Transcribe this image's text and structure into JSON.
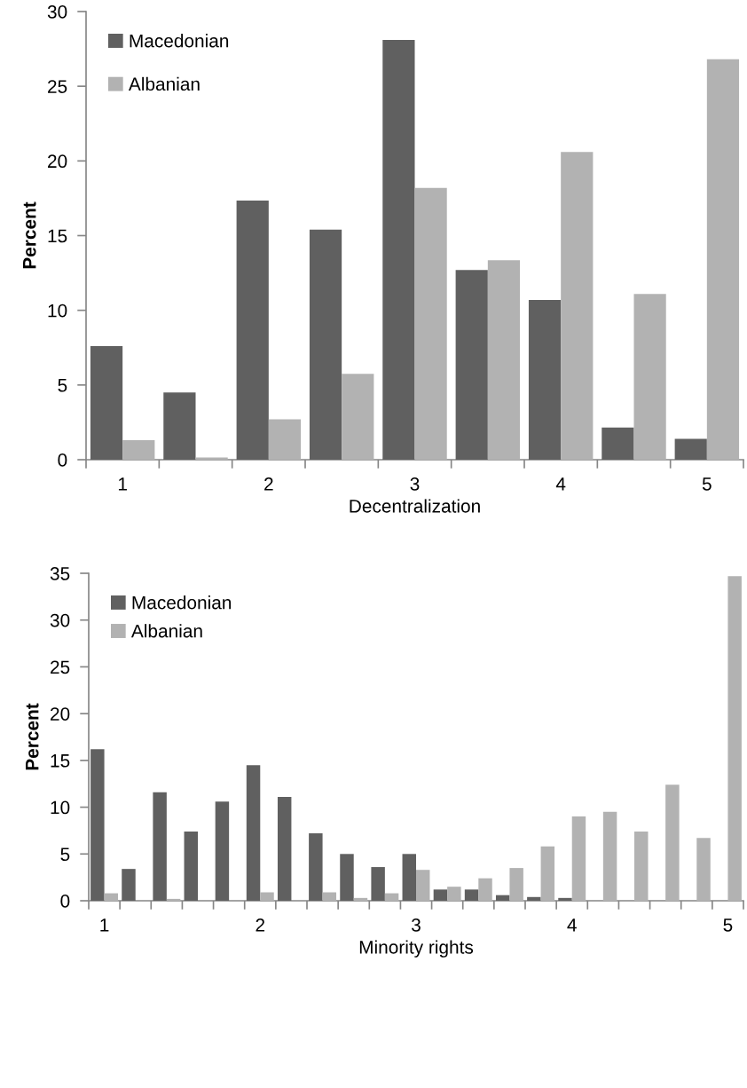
{
  "chart_data": [
    {
      "type": "bar",
      "xlabel": "Decentralization",
      "ylabel": "Percent",
      "categories": [
        "1",
        null,
        "2",
        null,
        "3",
        null,
        "4",
        null,
        "5"
      ],
      "series": [
        {
          "name": "Macedonian",
          "color": "#606060",
          "values": [
            7.6,
            4.5,
            17.35,
            15.4,
            28.1,
            12.7,
            10.7,
            2.15,
            1.4
          ]
        },
        {
          "name": "Albanian",
          "color": "#b2b2b2",
          "values": [
            1.3,
            0.15,
            2.7,
            5.75,
            18.2,
            13.35,
            20.6,
            11.1,
            26.8
          ]
        }
      ],
      "ylim": [
        0,
        30
      ],
      "yticks": [
        0,
        5,
        10,
        15,
        20,
        25,
        30
      ],
      "legend": "top left",
      "grid": false
    },
    {
      "type": "bar",
      "xlabel": "Minority rights",
      "ylabel": "Percent",
      "categories": [
        "1",
        null,
        null,
        null,
        null,
        "2",
        null,
        null,
        null,
        null,
        "3",
        null,
        null,
        null,
        null,
        "4",
        null,
        null,
        null,
        null,
        "5"
      ],
      "series": [
        {
          "name": "Macedonian",
          "color": "#606060",
          "values": [
            16.2,
            3.4,
            11.6,
            7.4,
            10.6,
            14.5,
            11.1,
            7.2,
            5.0,
            3.6,
            5.0,
            1.2,
            1.2,
            0.6,
            0.4,
            0.3,
            0,
            0,
            0,
            0,
            0
          ]
        },
        {
          "name": "Albanian",
          "color": "#b2b2b2",
          "values": [
            0.8,
            0,
            0.2,
            0,
            0,
            0.9,
            0,
            0.9,
            0.3,
            0.8,
            3.3,
            1.5,
            2.4,
            3.5,
            5.8,
            9.0,
            9.5,
            7.4,
            12.4,
            6.7,
            34.7
          ]
        }
      ],
      "ylim": [
        0,
        35
      ],
      "yticks": [
        0,
        5,
        10,
        15,
        20,
        25,
        30,
        35
      ],
      "legend": "top left",
      "grid": false
    }
  ]
}
